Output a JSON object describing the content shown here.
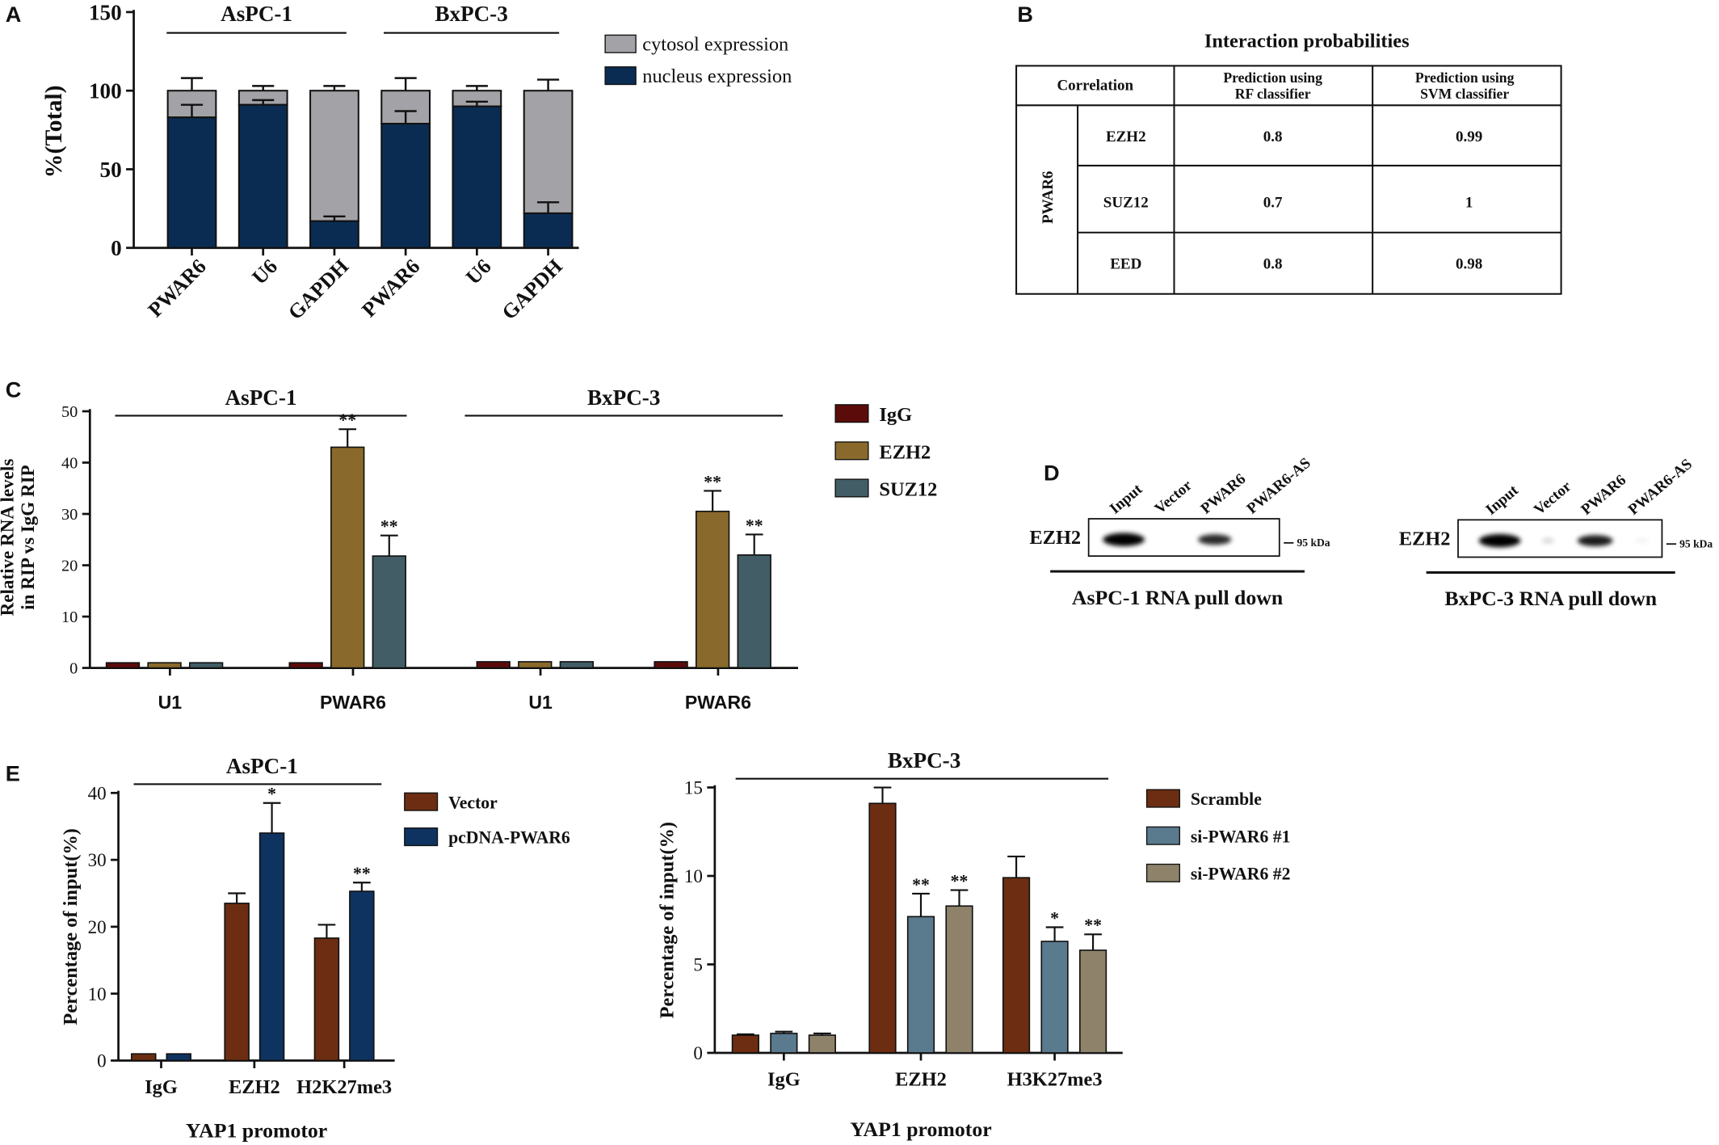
{
  "colors": {
    "navy": "#0b2c52",
    "gray": "#a3a3a7",
    "igg": "#5c0b0b",
    "ezh2_c": "#8a6a2c",
    "suz12_c": "#425d66",
    "brown": "#6c2d12",
    "dblue": "#0f3360",
    "slate": "#5a7a8e",
    "khaki": "#8e826a"
  },
  "chart_data": [
    {
      "panel": "A",
      "type": "bar",
      "stacked": true,
      "ylabel": "%(Total)",
      "ylim": [
        0,
        150
      ],
      "yticks": [
        0,
        50,
        100,
        150
      ],
      "categories": [
        "PWAR6",
        "U6",
        "GAPDH",
        "PWAR6",
        "U6",
        "GAPDH"
      ],
      "groups": [
        "AsPC-1",
        "BxPC-3"
      ],
      "series": [
        {
          "name": "nucleus expression",
          "values": [
            83,
            91,
            17,
            79,
            90,
            22
          ],
          "err": [
            8,
            3,
            3,
            8,
            3,
            7
          ]
        },
        {
          "name": "cytosol expression",
          "values": [
            17,
            9,
            83,
            21,
            10,
            78
          ],
          "err": [
            8,
            3,
            3,
            8,
            3,
            7
          ]
        }
      ]
    },
    {
      "panel": "B",
      "type": "table",
      "title": "Interaction probabilities",
      "columns": [
        "Correlation",
        "Prediction using RF classifier",
        "Prediction using SVM classifier"
      ],
      "row_group": "PWAR6",
      "rows": [
        {
          "name": "EZH2",
          "rf": "0.8",
          "svm": "0.99"
        },
        {
          "name": "SUZ12",
          "rf": "0.7",
          "svm": "1"
        },
        {
          "name": "EED",
          "rf": "0.8",
          "svm": "0.98"
        }
      ]
    },
    {
      "panel": "C",
      "type": "bar",
      "ylabel": "Relative RNA levels in RIP vs IgG RIP",
      "ylim": [
        0,
        50
      ],
      "yticks": [
        0,
        10,
        20,
        30,
        40,
        50
      ],
      "categories": [
        "U1",
        "PWAR6",
        "U1",
        "PWAR6"
      ],
      "groups": [
        "AsPC-1",
        "BxPC-3"
      ],
      "series": [
        {
          "name": "IgG",
          "values": [
            1,
            1,
            1.2,
            1.2
          ],
          "err": [
            0,
            0,
            0,
            0
          ],
          "sig": [
            "",
            "",
            "",
            ""
          ]
        },
        {
          "name": "EZH2",
          "values": [
            1,
            43,
            1.2,
            30.5
          ],
          "err": [
            0,
            3.5,
            0,
            4
          ],
          "sig": [
            "",
            "**",
            "",
            "**"
          ]
        },
        {
          "name": "SUZ12",
          "values": [
            1,
            21.8,
            1.2,
            22
          ],
          "err": [
            0,
            4,
            0,
            4
          ],
          "sig": [
            "",
            "**",
            "",
            "**"
          ]
        }
      ]
    },
    {
      "panel": "E",
      "type": "bar",
      "title": "AsPC-1",
      "xlabel": "YAP1 promotor",
      "ylabel": "Percentage of input(%)",
      "ylim": [
        0,
        40
      ],
      "yticks": [
        0,
        10,
        20,
        30,
        40
      ],
      "categories": [
        "IgG",
        "EZH2",
        "H2K27me3"
      ],
      "series": [
        {
          "name": "Vector",
          "values": [
            1,
            23.5,
            18.3
          ],
          "err": [
            0,
            1.5,
            2
          ],
          "sig": [
            "",
            "",
            ""
          ]
        },
        {
          "name": "pcDNA-PWAR6",
          "values": [
            1,
            34,
            25.3
          ],
          "err": [
            0,
            4.5,
            1.3
          ],
          "sig": [
            "",
            "*",
            "**"
          ]
        }
      ]
    },
    {
      "panel": "E",
      "type": "bar",
      "title": "BxPC-3",
      "xlabel": "YAP1 promotor",
      "ylabel": "Percentage of input(%)",
      "ylim": [
        0,
        15
      ],
      "yticks": [
        0,
        5,
        10,
        15
      ],
      "categories": [
        "IgG",
        "EZH2",
        "H3K27me3"
      ],
      "series": [
        {
          "name": "Scramble",
          "values": [
            1,
            14.1,
            9.9
          ],
          "err": [
            0.05,
            0.9,
            1.2
          ],
          "sig": [
            "",
            "",
            ""
          ]
        },
        {
          "name": "si-PWAR6 #1",
          "values": [
            1.1,
            7.7,
            6.3
          ],
          "err": [
            0.1,
            1.3,
            0.8
          ],
          "sig": [
            "",
            "**",
            "*"
          ]
        },
        {
          "name": "si-PWAR6 #2",
          "values": [
            1,
            8.3,
            5.8
          ],
          "err": [
            0.1,
            0.9,
            0.9
          ],
          "sig": [
            "",
            "**",
            "**"
          ]
        }
      ]
    }
  ],
  "panel_labels": {
    "a": "A",
    "b": "B",
    "c": "C",
    "d": "D",
    "e": "E"
  },
  "western_blot": {
    "left": {
      "protein": "EZH2",
      "lanes": [
        "Input",
        "Vector",
        "PWAR6",
        "PWAR6-AS"
      ],
      "marker": "95 kDa",
      "caption": "AsPC-1 RNA pull down",
      "band_intensity": [
        1,
        0,
        0.8,
        0
      ]
    },
    "right": {
      "protein": "EZH2",
      "lanes": [
        "Input",
        "Vector",
        "PWAR6",
        "PWAR6-AS"
      ],
      "marker": "95 kDa",
      "caption": "BxPC-3 RNA pull down",
      "band_intensity": [
        1,
        0.15,
        0.85,
        0.05
      ]
    }
  }
}
